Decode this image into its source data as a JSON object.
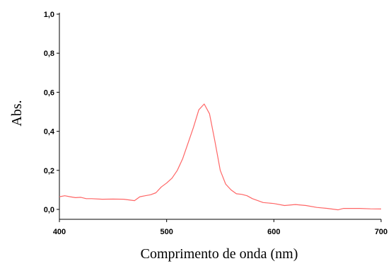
{
  "chart_data": {
    "type": "line",
    "title": "",
    "xlabel": "Comprimento de onda (nm)",
    "ylabel": "Abs.",
    "xlim": [
      400,
      700
    ],
    "ylim": [
      -0.05,
      1.0
    ],
    "x_ticks": [
      400,
      500,
      600,
      700
    ],
    "x_tick_labels": [
      "400",
      "500",
      "600",
      "700"
    ],
    "y_ticks": [
      0.0,
      0.2,
      0.4,
      0.6,
      0.8,
      1.0
    ],
    "y_tick_labels": [
      "0,0",
      "0,2",
      "0,4",
      "0,6",
      "0,8",
      "1,0"
    ],
    "grid": false,
    "legend": "none",
    "series": [
      {
        "color": "#ff6666",
        "x": [
          400,
          405,
          410,
          415,
          420,
          425,
          430,
          440,
          450,
          460,
          470,
          475,
          480,
          485,
          490,
          495,
          500,
          505,
          510,
          515,
          520,
          525,
          530,
          535,
          540,
          545,
          550,
          555,
          560,
          565,
          570,
          575,
          580,
          590,
          600,
          610,
          620,
          630,
          640,
          650,
          660,
          665,
          670,
          680,
          690,
          700
        ],
        "y": [
          0.065,
          0.07,
          0.065,
          0.06,
          0.062,
          0.055,
          0.055,
          0.052,
          0.053,
          0.052,
          0.045,
          0.065,
          0.07,
          0.075,
          0.085,
          0.115,
          0.135,
          0.16,
          0.2,
          0.26,
          0.34,
          0.42,
          0.51,
          0.54,
          0.49,
          0.35,
          0.2,
          0.13,
          0.1,
          0.08,
          0.077,
          0.07,
          0.055,
          0.035,
          0.03,
          0.02,
          0.025,
          0.02,
          0.01,
          0.005,
          -0.002,
          0.005,
          0.005,
          0.005,
          0.003,
          0.002
        ]
      }
    ]
  }
}
